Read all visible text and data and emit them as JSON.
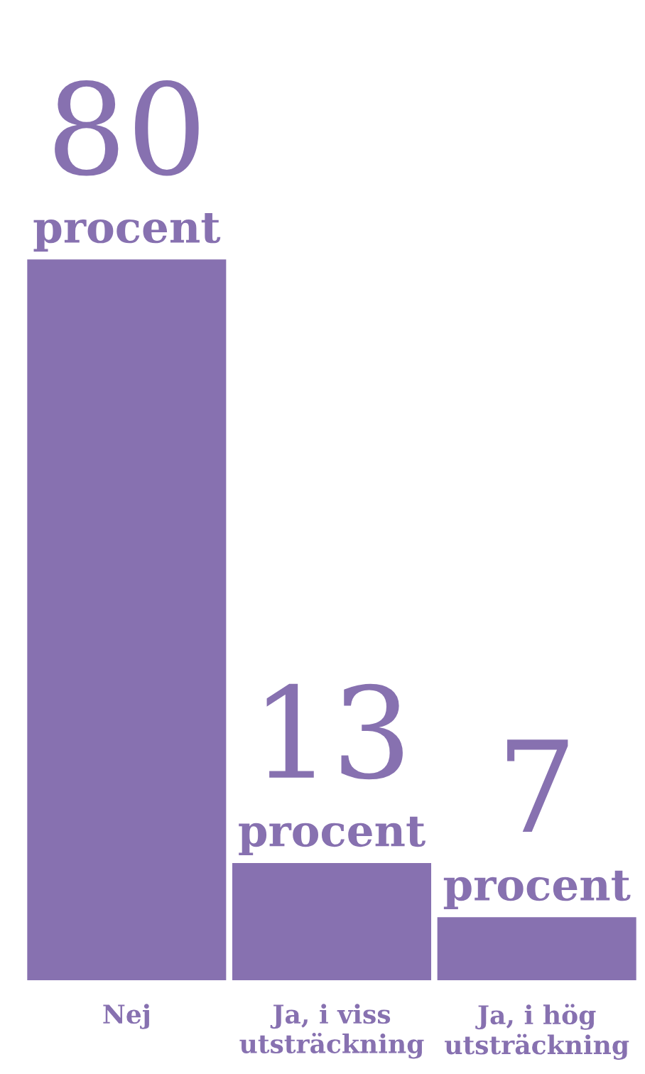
{
  "chart_data": {
    "type": "bar",
    "categories": [
      "Nej",
      "Ja, i viss\nutsträckning",
      "Ja, i hög\nutsträckning"
    ],
    "values": [
      80,
      13,
      7
    ],
    "value_labels": [
      "80\nprocent",
      "13\nprocent",
      "7\nprocent"
    ],
    "color": "#8771b0",
    "grid": false,
    "legend": false,
    "tick_labels": "x"
  }
}
